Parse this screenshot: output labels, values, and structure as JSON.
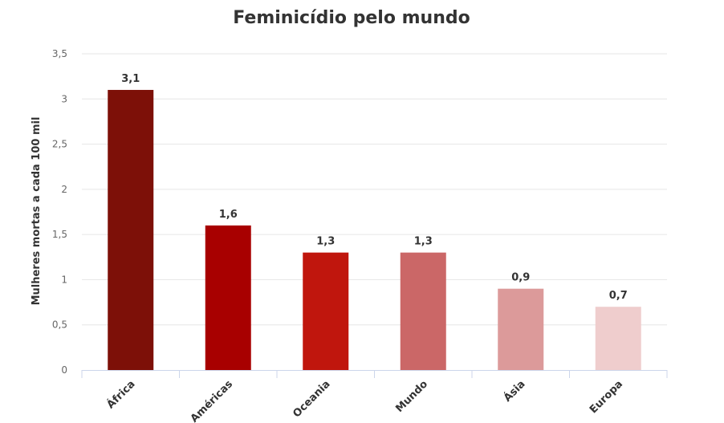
{
  "chart_data": {
    "type": "bar",
    "title": "Feminicídio pelo mundo",
    "ylabel": "Mulheres mortas a cada 100 mil",
    "ylim": [
      0,
      3.5
    ],
    "yticks": [
      "0",
      "0,5",
      "1",
      "1,5",
      "2",
      "2,5",
      "3",
      "3,5"
    ],
    "categories": [
      "África",
      "Américas",
      "Oceania",
      "Mundo",
      "Ásia",
      "Europa"
    ],
    "values": [
      3.1,
      1.6,
      1.3,
      1.3,
      0.9,
      0.7
    ],
    "data_labels": [
      "3,1",
      "1,6",
      "1,3",
      "1,3",
      "0,9",
      "0,7"
    ],
    "colors": [
      "#7d1008",
      "#a80000",
      "#c0160d",
      "#cb6767",
      "#dc9a9a",
      "#efcdcd"
    ],
    "grid": true,
    "legend": "none"
  }
}
